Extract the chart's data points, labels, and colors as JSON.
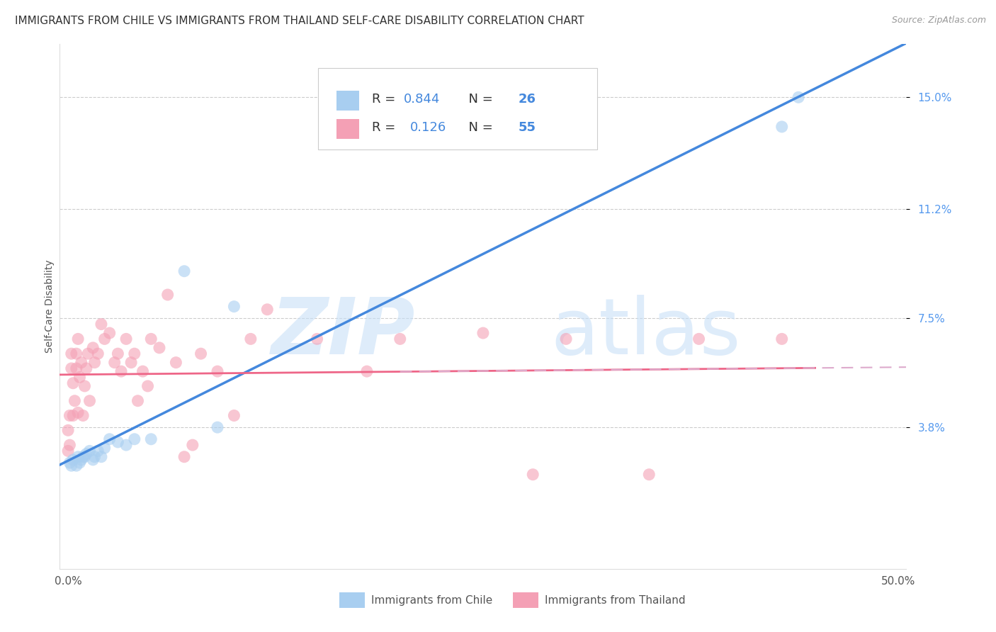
{
  "title": "IMMIGRANTS FROM CHILE VS IMMIGRANTS FROM THAILAND SELF-CARE DISABILITY CORRELATION CHART",
  "source": "Source: ZipAtlas.com",
  "ylabel": "Self-Care Disability",
  "y_tick_labels": [
    "3.8%",
    "7.5%",
    "11.2%",
    "15.0%"
  ],
  "y_tick_values": [
    0.038,
    0.075,
    0.112,
    0.15
  ],
  "xlim": [
    -0.005,
    0.505
  ],
  "ylim": [
    -0.01,
    0.168
  ],
  "chile_R": 0.844,
  "chile_N": 26,
  "thailand_R": 0.126,
  "thailand_N": 55,
  "chile_color": "#A8CEF0",
  "thailand_color": "#F4A0B5",
  "chile_line_color": "#4488DD",
  "thailand_line_solid_color": "#EE6688",
  "thailand_line_dash_color": "#DDAACC",
  "chile_x": [
    0.001,
    0.002,
    0.003,
    0.005,
    0.006,
    0.007,
    0.008,
    0.009,
    0.01,
    0.011,
    0.013,
    0.015,
    0.016,
    0.018,
    0.02,
    0.022,
    0.025,
    0.03,
    0.035,
    0.04,
    0.05,
    0.07,
    0.1,
    0.43,
    0.44,
    0.09
  ],
  "chile_y": [
    0.026,
    0.025,
    0.027,
    0.025,
    0.028,
    0.026,
    0.027,
    0.028,
    0.028,
    0.029,
    0.03,
    0.027,
    0.028,
    0.03,
    0.028,
    0.031,
    0.034,
    0.033,
    0.032,
    0.034,
    0.034,
    0.091,
    0.079,
    0.14,
    0.15,
    0.038
  ],
  "thailand_x": [
    0.0,
    0.0,
    0.001,
    0.001,
    0.002,
    0.002,
    0.003,
    0.003,
    0.004,
    0.005,
    0.005,
    0.006,
    0.006,
    0.007,
    0.008,
    0.009,
    0.01,
    0.011,
    0.012,
    0.013,
    0.015,
    0.016,
    0.018,
    0.02,
    0.022,
    0.025,
    0.028,
    0.03,
    0.032,
    0.035,
    0.038,
    0.04,
    0.042,
    0.045,
    0.048,
    0.05,
    0.055,
    0.06,
    0.065,
    0.07,
    0.075,
    0.08,
    0.09,
    0.1,
    0.11,
    0.12,
    0.15,
    0.18,
    0.2,
    0.25,
    0.28,
    0.3,
    0.35,
    0.38,
    0.43
  ],
  "thailand_y": [
    0.03,
    0.037,
    0.032,
    0.042,
    0.058,
    0.063,
    0.042,
    0.053,
    0.047,
    0.058,
    0.063,
    0.043,
    0.068,
    0.055,
    0.06,
    0.042,
    0.052,
    0.058,
    0.063,
    0.047,
    0.065,
    0.06,
    0.063,
    0.073,
    0.068,
    0.07,
    0.06,
    0.063,
    0.057,
    0.068,
    0.06,
    0.063,
    0.047,
    0.057,
    0.052,
    0.068,
    0.065,
    0.083,
    0.06,
    0.028,
    0.032,
    0.063,
    0.057,
    0.042,
    0.068,
    0.078,
    0.068,
    0.057,
    0.068,
    0.07,
    0.022,
    0.068,
    0.022,
    0.068,
    0.068
  ],
  "watermark_zip": "ZIP",
  "watermark_atlas": "atlas",
  "bottom_legend_chile": "Immigrants from Chile",
  "bottom_legend_thailand": "Immigrants from Thailand",
  "title_fontsize": 11,
  "axis_label_fontsize": 10,
  "tick_fontsize": 11
}
